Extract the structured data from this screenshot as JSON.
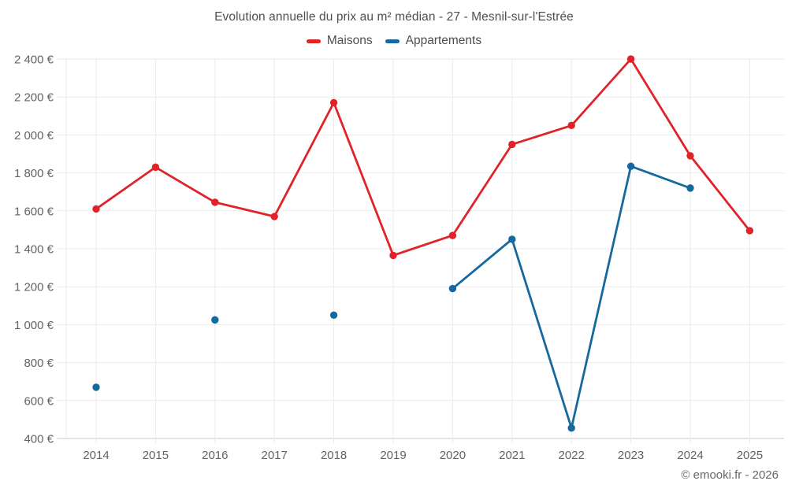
{
  "chart_data": {
    "type": "line",
    "title": "Evolution annuelle du prix au m² médian - 27 - Mesnil-sur-l'Estrée",
    "categories": [
      "2014",
      "2015",
      "2016",
      "2017",
      "2018",
      "2019",
      "2020",
      "2021",
      "2022",
      "2023",
      "2024",
      "2025"
    ],
    "series": [
      {
        "name": "Maisons",
        "color": "#e02329",
        "values": [
          1610,
          1830,
          1645,
          1570,
          2170,
          1365,
          1470,
          1950,
          2050,
          2400,
          1890,
          1495
        ]
      },
      {
        "name": "Appartements",
        "color": "#16699e",
        "values": [
          670,
          null,
          1025,
          null,
          1050,
          null,
          1190,
          1450,
          455,
          1835,
          1720,
          null
        ]
      }
    ],
    "xlabel": "",
    "ylabel": "",
    "ylim": [
      400,
      2400
    ],
    "y_tick_step": 200,
    "y_ticks": [
      {
        "value": 400,
        "label": "400 €"
      },
      {
        "value": 600,
        "label": "600 €"
      },
      {
        "value": 800,
        "label": "800 €"
      },
      {
        "value": 1000,
        "label": "1 000 €"
      },
      {
        "value": 1200,
        "label": "1 200 €"
      },
      {
        "value": 1400,
        "label": "1 400 €"
      },
      {
        "value": 1600,
        "label": "1 600 €"
      },
      {
        "value": 1800,
        "label": "1 800 €"
      },
      {
        "value": 2000,
        "label": "2 000 €"
      },
      {
        "value": 2200,
        "label": "2 200 €"
      },
      {
        "value": 2400,
        "label": "2 400 €"
      }
    ],
    "grid": true,
    "legend_position": "top",
    "footer": "© emooki.fr - 2026",
    "colors": {
      "gridline": "#ebebeb",
      "axis_line": "#c9c9c9",
      "tick_text": "#636363",
      "title_text": "#4e4e4e"
    }
  }
}
